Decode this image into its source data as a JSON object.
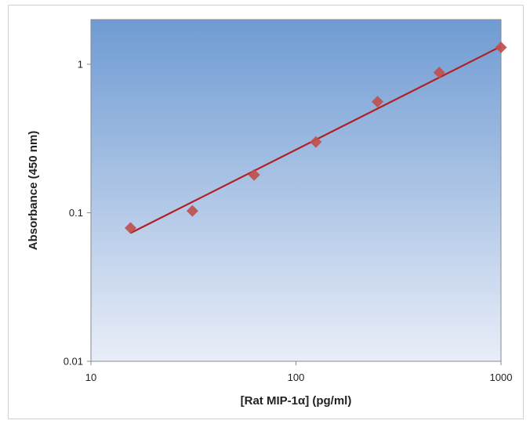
{
  "chart_data": {
    "type": "scatter",
    "title": "",
    "xlabel": "[Rat MIP-1α] (pg/ml)",
    "ylabel": "Absorbance (450 nm)",
    "x_scale": "log",
    "y_scale": "log",
    "xlim": [
      10,
      1000
    ],
    "ylim": [
      0.01,
      2
    ],
    "x_ticks": [
      {
        "value": 10,
        "label": "10"
      },
      {
        "value": 100,
        "label": "100"
      },
      {
        "value": 1000,
        "label": "1000"
      }
    ],
    "y_ticks": [
      {
        "value": 0.01,
        "label": "0.01"
      },
      {
        "value": 0.1,
        "label": "0.1"
      },
      {
        "value": 1,
        "label": "1"
      }
    ],
    "grid": false,
    "legend": "none",
    "colors": {
      "marker": "#c0504d",
      "fit_line": "#b21f24",
      "plot_bg_top": "#6f9bd3",
      "plot_bg_bottom": "#e9eef8"
    },
    "series": [
      {
        "marker": "diamond",
        "x": [
          15.6,
          31.25,
          62.5,
          125,
          250,
          500,
          1000
        ],
        "y": [
          0.079,
          0.103,
          0.18,
          0.3,
          0.56,
          0.88,
          1.3
        ]
      }
    ],
    "fit_line": {
      "type": "power",
      "x": [
        15.6,
        1000
      ],
      "y": [
        0.073,
        1.32
      ]
    }
  }
}
